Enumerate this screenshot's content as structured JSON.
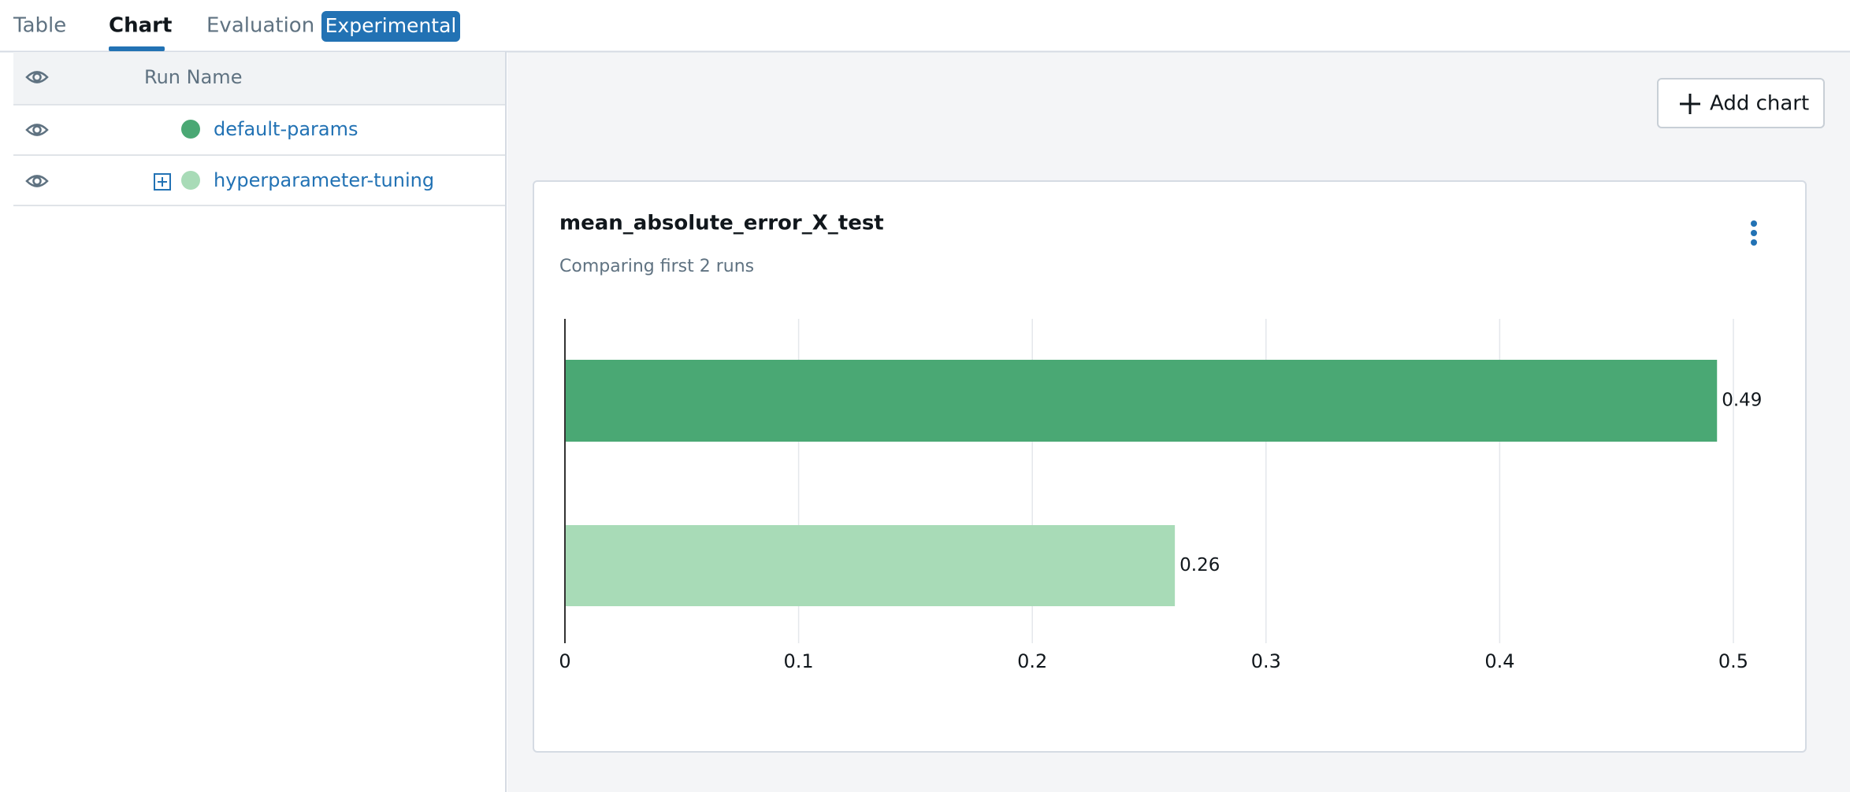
{
  "tabs": [
    "Table",
    "Chart",
    "Evaluation"
  ],
  "badge": "Experimental",
  "table": {
    "header": "Run Name",
    "rows": [
      "default-params",
      "hyperparameter-tuning"
    ]
  },
  "add_chart": "Add chart",
  "chart_data": {
    "type": "bar",
    "orientation": "horizontal",
    "title": "mean_absolute_error_X_test",
    "subtitle": "Comparing first 2 runs",
    "categories": [
      null,
      null
    ],
    "values": [
      0.493,
      0.261
    ],
    "value_labels": [
      "0.49",
      "0.26"
    ],
    "colors": [
      "#4aa874",
      "#a8dbb7"
    ],
    "xlim": [
      0,
      0.5
    ],
    "xticks": [
      0,
      0.1,
      0.2,
      0.3,
      0.4,
      0.5
    ],
    "grid": true
  }
}
